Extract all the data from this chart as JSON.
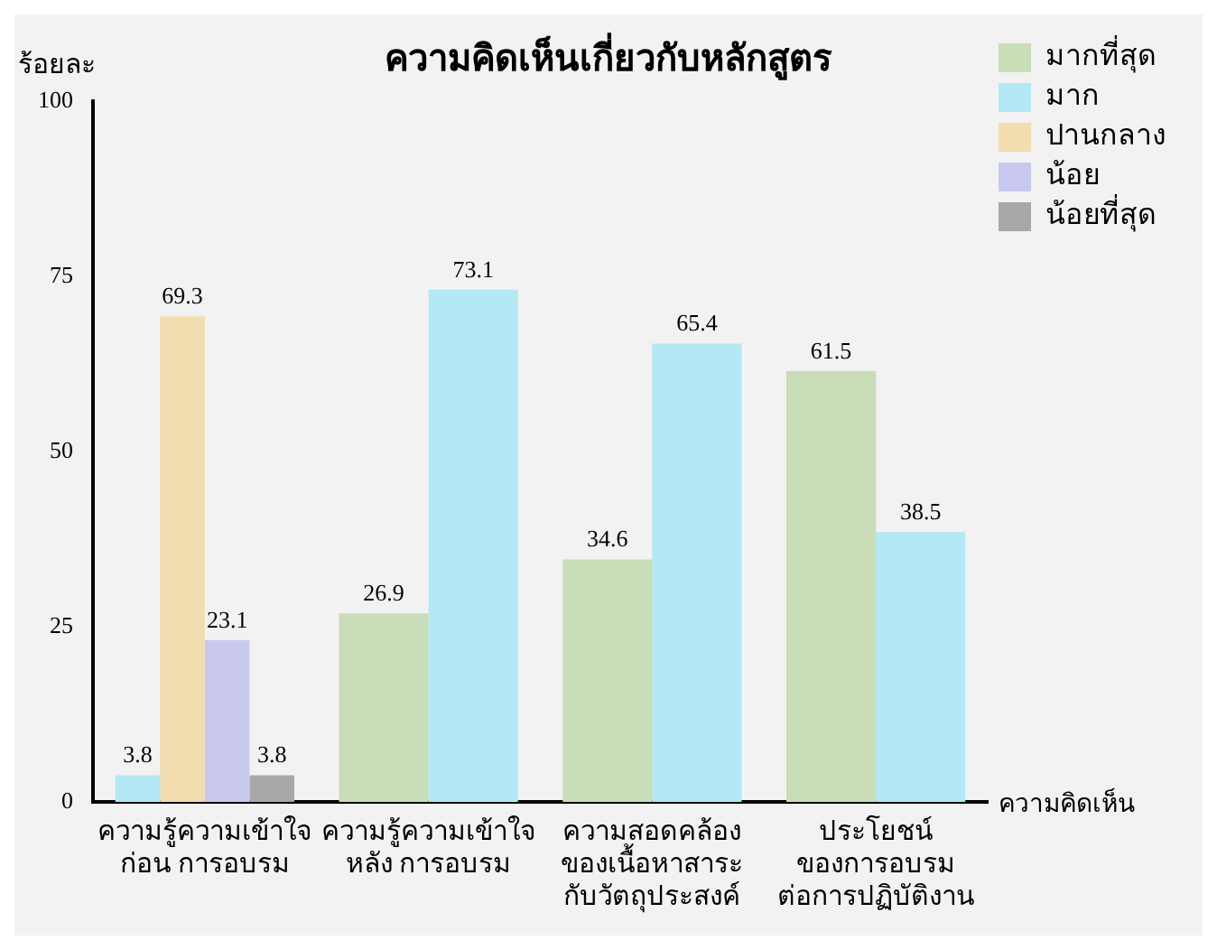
{
  "chart_data": {
    "type": "bar",
    "title": "ความคิดเห็นเกี่ยวกับหลักสูตร",
    "ylabel": "ร้อยละ",
    "xlabel": "ความคิดเห็น",
    "categories": [
      "ความรู้ความเข้าใจ\nก่อน การอบรม",
      "ความรู้ความเข้าใจ\nหลัง การอบรม",
      "ความสอดคล้อง\nของเนื้อหาสาระ\nกับวัตถุประสงค์",
      "ประโยชน์\nของการอบรม\nต่อการปฏิบัติงาน"
    ],
    "series": [
      {
        "name": "มากที่สุด",
        "color": "#c8ddb8",
        "values": [
          null,
          26.9,
          34.6,
          61.5
        ]
      },
      {
        "name": "มาก",
        "color": "#b3e8f5",
        "values": [
          3.8,
          73.1,
          65.4,
          38.5
        ]
      },
      {
        "name": "ปานกลาง",
        "color": "#f2ddb0",
        "values": [
          69.3,
          null,
          null,
          null
        ]
      },
      {
        "name": "น้อย",
        "color": "#c9c9f0",
        "values": [
          23.1,
          null,
          null,
          null
        ]
      },
      {
        "name": "น้อยที่สุด",
        "color": "#a8a8a8",
        "values": [
          3.8,
          null,
          null,
          null
        ]
      }
    ],
    "ylim": [
      0,
      100
    ],
    "yticks": [
      0,
      25,
      50,
      75,
      100
    ],
    "grid": false,
    "legend": "top right",
    "data_labels": true
  }
}
